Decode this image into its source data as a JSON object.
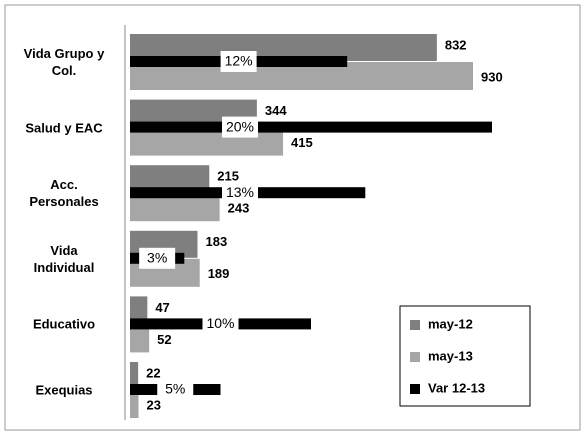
{
  "chart_data": {
    "type": "bar",
    "orientation": "horizontal",
    "categories": [
      "Vida Grupo y\nCol.",
      "Salud y EAC",
      "Acc.\nPersonales",
      "Vida\nIndividual",
      "Educativo",
      "Exequias"
    ],
    "series": [
      {
        "name": "may-12",
        "color": "#7f7f7f",
        "values": [
          832,
          344,
          215,
          183,
          47,
          22
        ]
      },
      {
        "name": "may-13",
        "color": "#a6a6a6",
        "values": [
          930,
          415,
          243,
          189,
          52,
          23
        ]
      },
      {
        "name": "Var 12-13",
        "color": "#000000",
        "values": [
          12,
          20,
          13,
          3,
          10,
          5
        ],
        "value_labels": [
          "12%",
          "20%",
          "13%",
          "3%",
          "10%",
          "5%"
        ]
      }
    ],
    "legend": "bottom-right"
  }
}
